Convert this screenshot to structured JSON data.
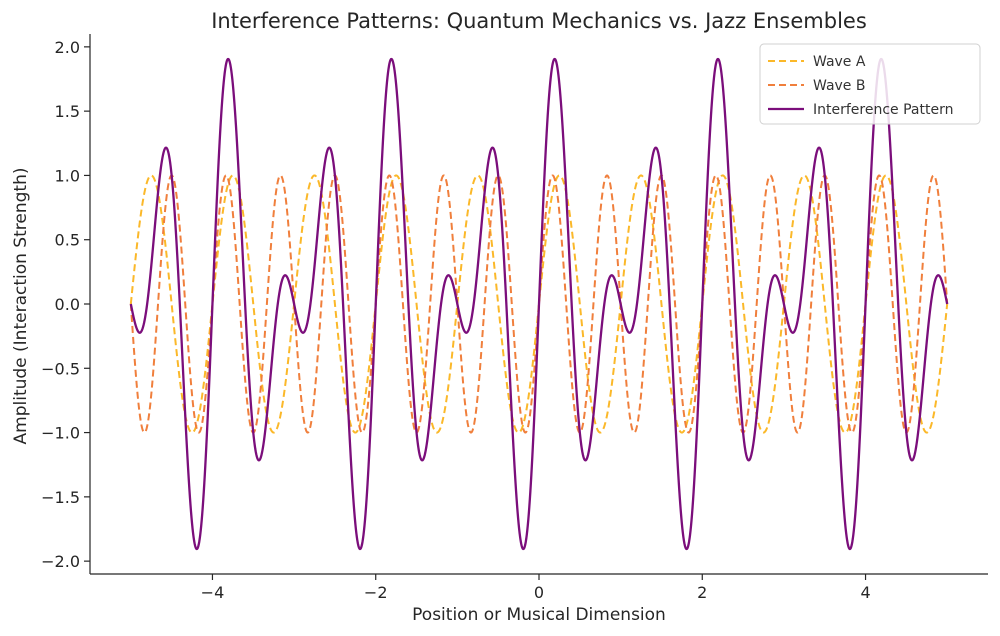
{
  "chart_data": {
    "type": "line",
    "title": "Interference Patterns: Quantum Mechanics vs. Jazz Ensembles",
    "xlabel": "Position or Musical Dimension",
    "ylabel": "Amplitude (Interaction Strength)",
    "xlim": [
      -5.5,
      5.5
    ],
    "ylim": [
      -2.1,
      2.1
    ],
    "xticks": [
      -4,
      -2,
      0,
      2,
      4
    ],
    "xtick_labels": [
      "−4",
      "−2",
      "0",
      "2",
      "4"
    ],
    "yticks": [
      2.0,
      1.5,
      1.0,
      0.5,
      0.0,
      -0.5,
      -1.0,
      -1.5,
      -2.0
    ],
    "ytick_labels": [
      "2.0",
      "1.5",
      "1.0",
      "0.5",
      "0.0",
      "−0.5",
      "−1.0",
      "−1.5",
      "−2.0"
    ],
    "x_range": [
      -5,
      5
    ],
    "legend_position": "top-right",
    "grid": false,
    "series": [
      {
        "name": "Wave A",
        "function": "sin(2*pi*f*x)",
        "frequency": 1.0,
        "amplitude": 1.0,
        "style": "dashed",
        "color": "#FBB829"
      },
      {
        "name": "Wave B",
        "function": "sin(2*pi*f*x)",
        "frequency": 1.5,
        "amplitude": 1.0,
        "style": "dashed",
        "color": "#F07F3C"
      },
      {
        "name": "Interference Pattern",
        "function": "WaveA + WaveB",
        "style": "solid",
        "color": "#7B0E7B"
      }
    ]
  }
}
